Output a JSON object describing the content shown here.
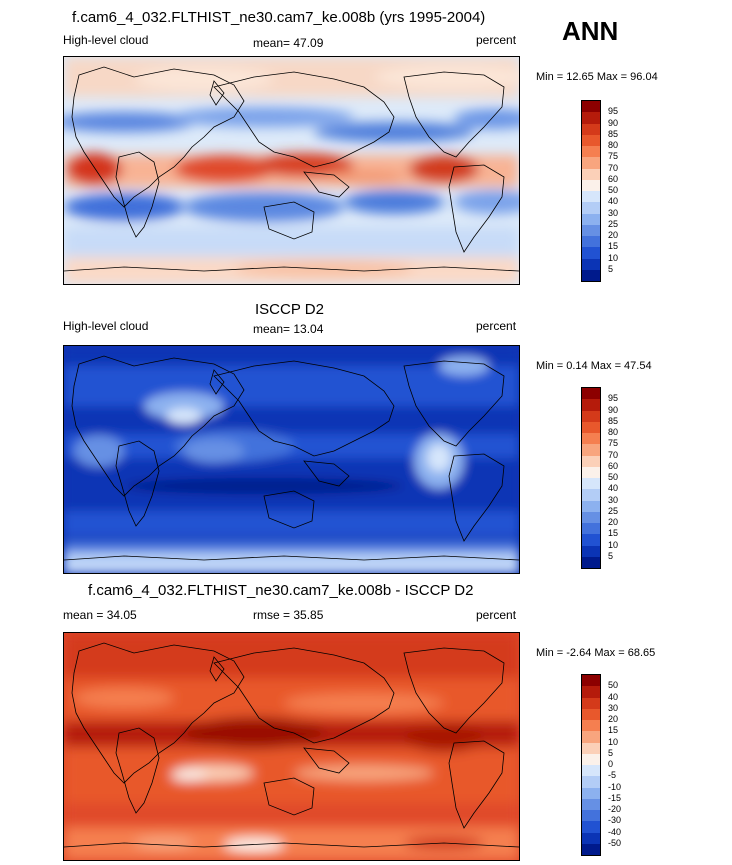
{
  "season": "ANN",
  "panels": [
    {
      "title": "f.cam6_4_032.FLTHIST_ne30.cam7_ke.008b (yrs 1995-2004)",
      "left_label": "High-level cloud",
      "center_label": "mean=  47.09",
      "right_label": "percent",
      "minmax": "Min =  12.65 Max =  96.04",
      "levels": [
        "95",
        "90",
        "85",
        "80",
        "75",
        "70",
        "60",
        "50",
        "40",
        "30",
        "25",
        "20",
        "15",
        "10",
        "5"
      ],
      "colors": [
        "#8c0000",
        "#b51b0b",
        "#d43a1a",
        "#e8582c",
        "#f57f50",
        "#f8a57e",
        "#fbd0b8",
        "#fbf1ea",
        "#d6e6fb",
        "#b3cdf6",
        "#8cb1ef",
        "#6690e4",
        "#4372dc",
        "#2152d2",
        "#0b34b5",
        "#001a8c"
      ]
    },
    {
      "title": "ISCCP D2",
      "left_label": "High-level cloud",
      "center_label": "mean=  13.04",
      "right_label": "percent",
      "minmax": "Min =  0.14 Max =  47.54",
      "levels": [
        "95",
        "90",
        "85",
        "80",
        "75",
        "70",
        "60",
        "50",
        "40",
        "30",
        "25",
        "20",
        "15",
        "10",
        "5"
      ],
      "colors": [
        "#8c0000",
        "#b51b0b",
        "#d43a1a",
        "#e8582c",
        "#f57f50",
        "#f8a57e",
        "#fbd0b8",
        "#fbf1ea",
        "#d6e6fb",
        "#b3cdf6",
        "#8cb1ef",
        "#6690e4",
        "#4372dc",
        "#2152d2",
        "#0b34b5",
        "#001a8c"
      ]
    },
    {
      "title": "f.cam6_4_032.FLTHIST_ne30.cam7_ke.008b - ISCCP D2",
      "left_label": "mean =  34.05",
      "center_label": "rmse =  35.85",
      "right_label": "percent",
      "minmax": "Min =  -2.64 Max =  68.65",
      "levels": [
        "50",
        "40",
        "30",
        "20",
        "15",
        "10",
        "5",
        "0",
        "-5",
        "-10",
        "-15",
        "-20",
        "-30",
        "-40",
        "-50"
      ],
      "colors": [
        "#8c0000",
        "#b51b0b",
        "#d43a1a",
        "#e8582c",
        "#f57f50",
        "#f8a57e",
        "#fbd0b8",
        "#fbf1ea",
        "#d6e6fb",
        "#b3cdf6",
        "#8cb1ef",
        "#6690e4",
        "#4372dc",
        "#2152d2",
        "#0b34b5",
        "#001a8c"
      ]
    }
  ]
}
